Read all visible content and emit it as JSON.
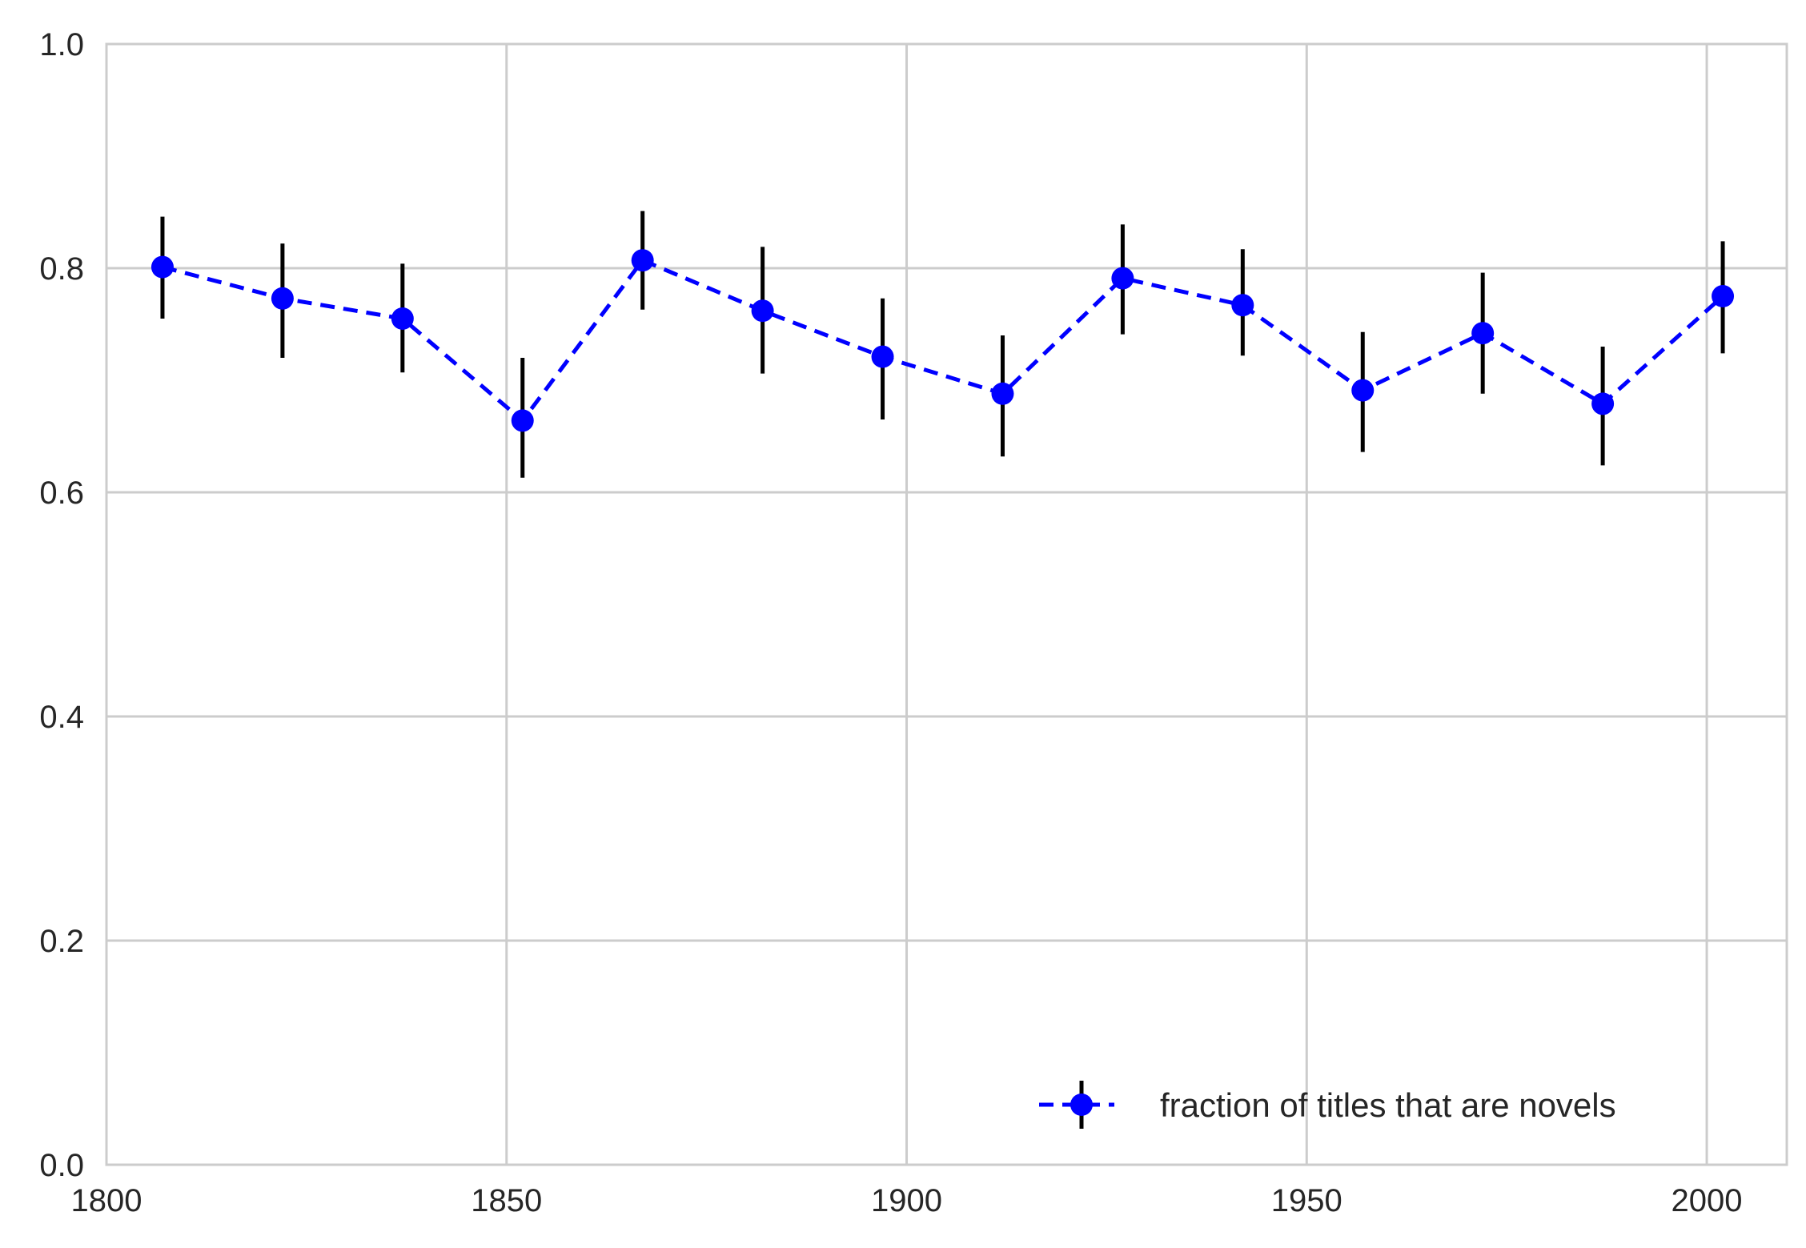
{
  "chart_data": {
    "type": "line",
    "title": "",
    "xlabel": "",
    "ylabel": "",
    "xlim": [
      1800,
      2010
    ],
    "ylim": [
      0.0,
      1.0
    ],
    "xticks": [
      "1800",
      "1850",
      "1900",
      "1950",
      "2000"
    ],
    "yticks": [
      "0.0",
      "0.2",
      "0.4",
      "0.6",
      "0.8",
      "1.0"
    ],
    "grid": true,
    "legend_position": "lower-right",
    "line_style": "dashed",
    "marker": "circle",
    "series": [
      {
        "name": "fraction of titles that are novels",
        "color": "#0000ff",
        "errorbar_color": "#000000",
        "x": [
          1807,
          1822,
          1837,
          1852,
          1867,
          1882,
          1897,
          1912,
          1927,
          1942,
          1957,
          1972,
          1987,
          2002
        ],
        "y": [
          0.801,
          0.773,
          0.755,
          0.664,
          0.807,
          0.762,
          0.721,
          0.688,
          0.791,
          0.767,
          0.691,
          0.742,
          0.679,
          0.775
        ],
        "y_lower": [
          0.755,
          0.72,
          0.707,
          0.613,
          0.763,
          0.706,
          0.665,
          0.632,
          0.741,
          0.722,
          0.636,
          0.688,
          0.624,
          0.724
        ],
        "y_upper": [
          0.846,
          0.822,
          0.804,
          0.72,
          0.851,
          0.819,
          0.773,
          0.74,
          0.839,
          0.817,
          0.743,
          0.796,
          0.73,
          0.824
        ]
      }
    ]
  }
}
